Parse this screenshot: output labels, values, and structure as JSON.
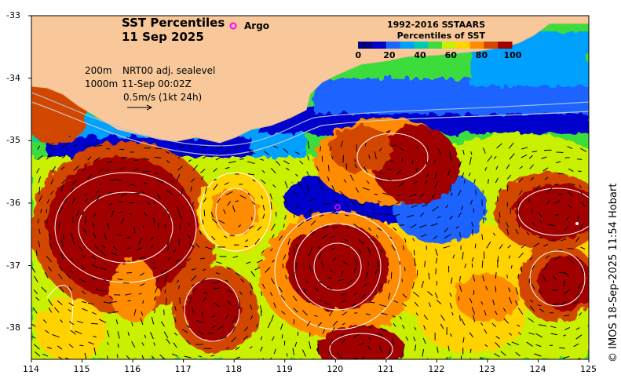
{
  "title": {
    "line1": "SST Percentiles",
    "line2": "11 Sep 2025"
  },
  "argo_label": "Argo",
  "legend": {
    "title_line1": "1992-2016 SSTAARS",
    "title_line2": "Percentiles of SST",
    "ticks": [
      "0",
      "20",
      "40",
      "60",
      "80",
      "100"
    ],
    "colors": [
      "#000080",
      "#0000cd",
      "#1e64ff",
      "#00a0ff",
      "#00c8b4",
      "#3cdc3c",
      "#c8f000",
      "#ffd200",
      "#ff8c00",
      "#d24600",
      "#a00000"
    ]
  },
  "annotations": {
    "contour_200": "200m",
    "contour_1000": "1000m",
    "sealevel": "NRT00 adj. sealevel",
    "time": "11-Sep 00:02Z",
    "vector_scale": "0.5m/s (1kt 24h)"
  },
  "axes": {
    "x_ticks": [
      "114",
      "115",
      "116",
      "117",
      "118",
      "119",
      "120",
      "121",
      "122",
      "123",
      "124",
      "125"
    ],
    "y_ticks": [
      "-33",
      "-34",
      "-35",
      "-36",
      "-37",
      "-38"
    ],
    "lon_range": [
      114,
      125
    ],
    "lat_range": [
      -38.5,
      -33
    ]
  },
  "credit": "© IMOS 18-Sep-2025 11:54 Hobart",
  "colors": {
    "land": "#f8c89a",
    "argo_marker": "#ff00ff",
    "contour": "#ffffff"
  }
}
